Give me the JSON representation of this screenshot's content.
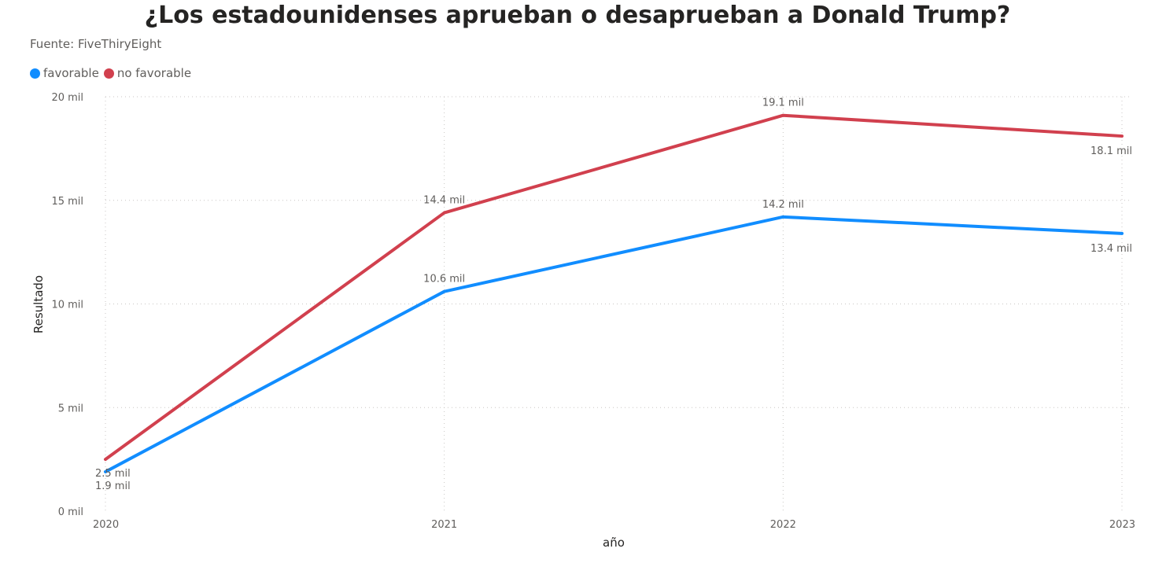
{
  "chart_data": {
    "type": "line",
    "title": "¿Los estadounidenses aprueban o desaprueban a Donald Trump?",
    "subtitle": "Fuente: FiveThiryEight",
    "xlabel": "año",
    "ylabel": "Resultado",
    "x": [
      "2020",
      "2021",
      "2022",
      "2023"
    ],
    "ylim": [
      0,
      20
    ],
    "y_ticks": [
      0,
      5,
      10,
      15,
      20
    ],
    "y_tick_labels": [
      "0 mil",
      "5 mil",
      "10 mil",
      "15 mil",
      "20 mil"
    ],
    "grid": true,
    "legend_position": "top-left",
    "series": [
      {
        "name": "favorable",
        "color": "#118DFF",
        "values": [
          1.9,
          10.6,
          14.2,
          13.4
        ],
        "labels": [
          "1.9 mil",
          "10.6 mil",
          "14.2 mil",
          "13.4 mil"
        ]
      },
      {
        "name": "no favorable",
        "color": "#D1404E",
        "values": [
          2.5,
          14.4,
          19.1,
          18.1
        ],
        "labels": [
          "2.5 mil",
          "14.4 mil",
          "19.1 mil",
          "18.1 mil"
        ]
      }
    ]
  }
}
